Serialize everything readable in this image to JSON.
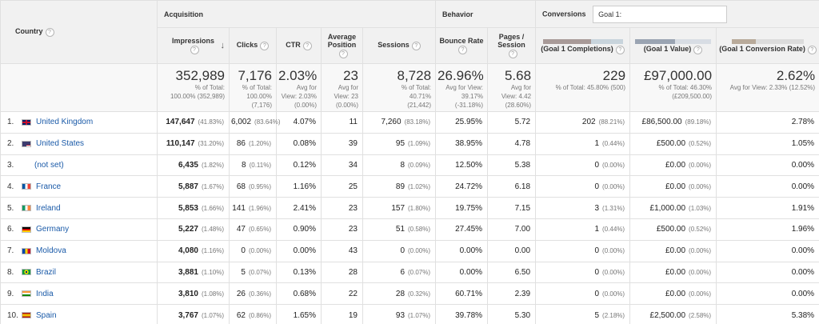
{
  "header": {
    "country_label": "Country",
    "groups": {
      "acquisition": "Acquisition",
      "behavior": "Behavior",
      "conversions": "Conversions",
      "goal_select": "Goal 1:"
    },
    "columns": {
      "impressions": "Impressions",
      "clicks": "Clicks",
      "ctr": "CTR",
      "avg_position": "Average Position",
      "sessions": "Sessions",
      "bounce_rate": "Bounce Rate",
      "pages_session": "Pages / Session",
      "goal_completions": "(Goal 1 Completions)",
      "goal_value": "(Goal 1 Value)",
      "goal_conv_rate": "(Goal 1 Conversion Rate)"
    },
    "sort_arrow": "↓",
    "help_mark": "?"
  },
  "totals": {
    "impressions": {
      "value": "352,989",
      "sub1": "% of Total:",
      "sub2": "100.00% (352,989)"
    },
    "clicks": {
      "value": "7,176",
      "sub1": "% of Total:",
      "sub2": "100.00%",
      "sub3": "(7,176)"
    },
    "ctr": {
      "value": "2.03%",
      "sub1": "Avg for",
      "sub2": "View: 2.03%",
      "sub3": "(0.00%)"
    },
    "avg_position": {
      "value": "23",
      "sub1": "Avg for",
      "sub2": "View: 23",
      "sub3": "(0.00%)"
    },
    "sessions": {
      "value": "8,728",
      "sub1": "% of Total:",
      "sub2": "40.71%",
      "sub3": "(21,442)"
    },
    "bounce_rate": {
      "value": "26.96%",
      "sub1": "Avg for View:",
      "sub2": "39.17%",
      "sub3": "(-31.18%)"
    },
    "pages_session": {
      "value": "5.68",
      "sub1": "Avg for",
      "sub2": "View: 4.42",
      "sub3": "(28.60%)"
    },
    "goal_completions": {
      "value": "229",
      "sub1": "% of Total: 45.80% (500)"
    },
    "goal_value": {
      "value": "£97,000.00",
      "sub1": "% of Total: 46.30%",
      "sub2": "(£209,500.00)"
    },
    "goal_conv_rate": {
      "value": "2.62%",
      "sub1": "Avg for View: 2.33% (12.52%)"
    }
  },
  "rows": [
    {
      "rank": "1.",
      "country": "United Kingdom",
      "flag": "uk",
      "impressions": "147,647",
      "impressions_pct": "(41.83%)",
      "clicks": "6,002",
      "clicks_pct": "(83.64%)",
      "ctr": "4.07%",
      "avg_position": "11",
      "sessions": "7,260",
      "sessions_pct": "(83.18%)",
      "bounce_rate": "25.95%",
      "pages_session": "5.72",
      "goal_completions": "202",
      "goal_completions_pct": "(88.21%)",
      "goal_value": "£86,500.00",
      "goal_value_pct": "(89.18%)",
      "goal_conv_rate": "2.78%"
    },
    {
      "rank": "2.",
      "country": "United States",
      "flag": "us",
      "impressions": "110,147",
      "impressions_pct": "(31.20%)",
      "clicks": "86",
      "clicks_pct": "(1.20%)",
      "ctr": "0.08%",
      "avg_position": "39",
      "sessions": "95",
      "sessions_pct": "(1.09%)",
      "bounce_rate": "38.95%",
      "pages_session": "4.78",
      "goal_completions": "1",
      "goal_completions_pct": "(0.44%)",
      "goal_value": "£500.00",
      "goal_value_pct": "(0.52%)",
      "goal_conv_rate": "1.05%"
    },
    {
      "rank": "3.",
      "country": "(not set)",
      "flag": "",
      "impressions": "6,435",
      "impressions_pct": "(1.82%)",
      "clicks": "8",
      "clicks_pct": "(0.11%)",
      "ctr": "0.12%",
      "avg_position": "34",
      "sessions": "8",
      "sessions_pct": "(0.09%)",
      "bounce_rate": "12.50%",
      "pages_session": "5.38",
      "goal_completions": "0",
      "goal_completions_pct": "(0.00%)",
      "goal_value": "£0.00",
      "goal_value_pct": "(0.00%)",
      "goal_conv_rate": "0.00%"
    },
    {
      "rank": "4.",
      "country": "France",
      "flag": "fr",
      "impressions": "5,887",
      "impressions_pct": "(1.67%)",
      "clicks": "68",
      "clicks_pct": "(0.95%)",
      "ctr": "1.16%",
      "avg_position": "25",
      "sessions": "89",
      "sessions_pct": "(1.02%)",
      "bounce_rate": "24.72%",
      "pages_session": "6.18",
      "goal_completions": "0",
      "goal_completions_pct": "(0.00%)",
      "goal_value": "£0.00",
      "goal_value_pct": "(0.00%)",
      "goal_conv_rate": "0.00%"
    },
    {
      "rank": "5.",
      "country": "Ireland",
      "flag": "ie",
      "impressions": "5,853",
      "impressions_pct": "(1.66%)",
      "clicks": "141",
      "clicks_pct": "(1.96%)",
      "ctr": "2.41%",
      "avg_position": "23",
      "sessions": "157",
      "sessions_pct": "(1.80%)",
      "bounce_rate": "19.75%",
      "pages_session": "7.15",
      "goal_completions": "3",
      "goal_completions_pct": "(1.31%)",
      "goal_value": "£1,000.00",
      "goal_value_pct": "(1.03%)",
      "goal_conv_rate": "1.91%"
    },
    {
      "rank": "6.",
      "country": "Germany",
      "flag": "de",
      "impressions": "5,227",
      "impressions_pct": "(1.48%)",
      "clicks": "47",
      "clicks_pct": "(0.65%)",
      "ctr": "0.90%",
      "avg_position": "23",
      "sessions": "51",
      "sessions_pct": "(0.58%)",
      "bounce_rate": "27.45%",
      "pages_session": "7.00",
      "goal_completions": "1",
      "goal_completions_pct": "(0.44%)",
      "goal_value": "£500.00",
      "goal_value_pct": "(0.52%)",
      "goal_conv_rate": "1.96%"
    },
    {
      "rank": "7.",
      "country": "Moldova",
      "flag": "md",
      "impressions": "4,080",
      "impressions_pct": "(1.16%)",
      "clicks": "0",
      "clicks_pct": "(0.00%)",
      "ctr": "0.00%",
      "avg_position": "43",
      "sessions": "0",
      "sessions_pct": "(0.00%)",
      "bounce_rate": "0.00%",
      "pages_session": "0.00",
      "goal_completions": "0",
      "goal_completions_pct": "(0.00%)",
      "goal_value": "£0.00",
      "goal_value_pct": "(0.00%)",
      "goal_conv_rate": "0.00%"
    },
    {
      "rank": "8.",
      "country": "Brazil",
      "flag": "br",
      "impressions": "3,881",
      "impressions_pct": "(1.10%)",
      "clicks": "5",
      "clicks_pct": "(0.07%)",
      "ctr": "0.13%",
      "avg_position": "28",
      "sessions": "6",
      "sessions_pct": "(0.07%)",
      "bounce_rate": "0.00%",
      "pages_session": "6.50",
      "goal_completions": "0",
      "goal_completions_pct": "(0.00%)",
      "goal_value": "£0.00",
      "goal_value_pct": "(0.00%)",
      "goal_conv_rate": "0.00%"
    },
    {
      "rank": "9.",
      "country": "India",
      "flag": "in",
      "impressions": "3,810",
      "impressions_pct": "(1.08%)",
      "clicks": "26",
      "clicks_pct": "(0.36%)",
      "ctr": "0.68%",
      "avg_position": "22",
      "sessions": "28",
      "sessions_pct": "(0.32%)",
      "bounce_rate": "60.71%",
      "pages_session": "2.39",
      "goal_completions": "0",
      "goal_completions_pct": "(0.00%)",
      "goal_value": "£0.00",
      "goal_value_pct": "(0.00%)",
      "goal_conv_rate": "0.00%"
    },
    {
      "rank": "10.",
      "country": "Spain",
      "flag": "es",
      "impressions": "3,767",
      "impressions_pct": "(1.07%)",
      "clicks": "62",
      "clicks_pct": "(0.86%)",
      "ctr": "1.65%",
      "avg_position": "19",
      "sessions": "93",
      "sessions_pct": "(1.07%)",
      "bounce_rate": "39.78%",
      "pages_session": "5.30",
      "goal_completions": "5",
      "goal_completions_pct": "(2.18%)",
      "goal_value": "£2,500.00",
      "goal_value_pct": "(2.58%)",
      "goal_conv_rate": "5.38%"
    }
  ],
  "colors": {
    "link": "#1a5aa8",
    "header_bg": "#f1f1f1",
    "border": "#e0e0e0"
  }
}
